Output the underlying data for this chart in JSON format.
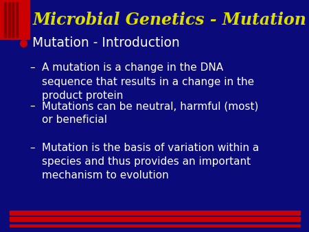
{
  "bg_color": "#0a0a7a",
  "title": "Microbial Genetics - Mutation",
  "title_color": "#dddd00",
  "title_fontsize": 17,
  "header_red_rect_color": "#cc0000",
  "header_stripe_color": "#8b0000",
  "bullet_color": "#cc0000",
  "bullet_text": "Mutation - Introduction",
  "bullet_fontsize": 13.5,
  "bullet_text_color": "#ffffff",
  "sub_bullets": [
    "A mutation is a change in the DNA\nsequence that results in a change in the\nproduct protein",
    "Mutations can be neutral, harmful (most)\nor beneficial",
    "Mutation is the basis of variation within a\nspecies and thus provides an important\nmechanism to evolution"
  ],
  "sub_bullet_fontsize": 11,
  "sub_bullet_color": "#ffffff",
  "footer_bar_color": "#cc0000",
  "footer_line_color": "#ff3333"
}
